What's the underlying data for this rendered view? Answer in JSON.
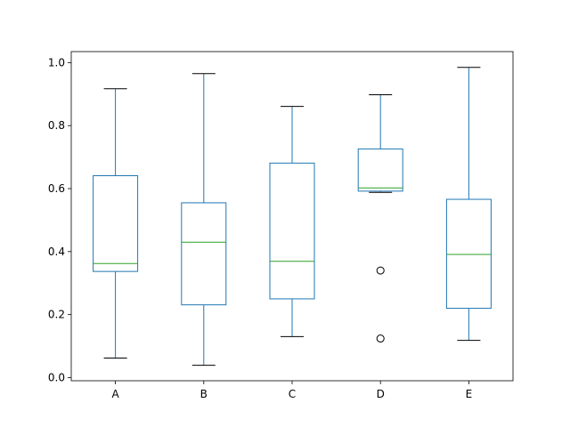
{
  "chart_data": {
    "type": "box",
    "title": "",
    "xlabel": "",
    "ylabel": "",
    "categories": [
      "A",
      "B",
      "C",
      "D",
      "E"
    ],
    "ylim": [
      -0.01,
      1.035
    ],
    "yticks": [
      0.0,
      0.2,
      0.4,
      0.6,
      0.8,
      1.0
    ],
    "ytick_labels": [
      "0.0",
      "0.2",
      "0.4",
      "0.6",
      "0.8",
      "1.0"
    ],
    "grid": false,
    "boxes": [
      {
        "category": "A",
        "whisker_low": 0.062,
        "q1": 0.337,
        "median": 0.362,
        "q3": 0.641,
        "whisker_high": 0.917,
        "outliers": []
      },
      {
        "category": "B",
        "whisker_low": 0.039,
        "q1": 0.231,
        "median": 0.43,
        "q3": 0.555,
        "whisker_high": 0.965,
        "outliers": []
      },
      {
        "category": "C",
        "whisker_low": 0.13,
        "q1": 0.25,
        "median": 0.369,
        "q3": 0.681,
        "whisker_high": 0.861,
        "outliers": []
      },
      {
        "category": "D",
        "whisker_low": 0.588,
        "q1": 0.592,
        "median": 0.602,
        "q3": 0.726,
        "whisker_high": 0.898,
        "outliers": [
          0.34,
          0.124
        ]
      },
      {
        "category": "E",
        "whisker_low": 0.118,
        "q1": 0.22,
        "median": 0.391,
        "q3": 0.566,
        "whisker_high": 0.985,
        "outliers": []
      }
    ],
    "colors": {
      "box": "#1f77b4",
      "median": "#2ca02c",
      "whisker_cap": "#000000",
      "outlier": "#000000"
    }
  }
}
